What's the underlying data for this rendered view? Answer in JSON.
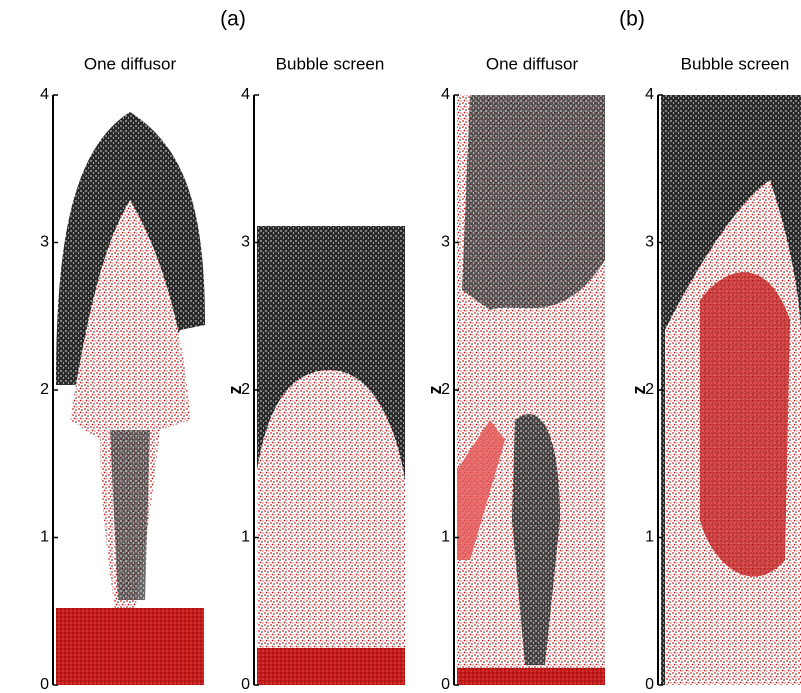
{
  "labels": [
    "(a)",
    "(b)"
  ],
  "panels": [
    {
      "title": "One diffusor",
      "ylim": [
        0,
        4
      ],
      "yticks": [
        0,
        1,
        2,
        3,
        4
      ]
    },
    {
      "title": "Bubble screen",
      "ylabel": "z",
      "ylim": [
        0,
        4
      ],
      "yticks": [
        0,
        1,
        2,
        3,
        4
      ]
    },
    {
      "title": "One diffusor",
      "ylabel": "z",
      "ylim": [
        0,
        4
      ],
      "yticks": [
        0,
        1,
        2,
        3,
        4
      ]
    },
    {
      "title": "Bubble screen",
      "ylabel": "z",
      "ylim": [
        0,
        4
      ],
      "yticks": [
        0,
        1,
        2,
        3,
        4
      ]
    }
  ]
}
